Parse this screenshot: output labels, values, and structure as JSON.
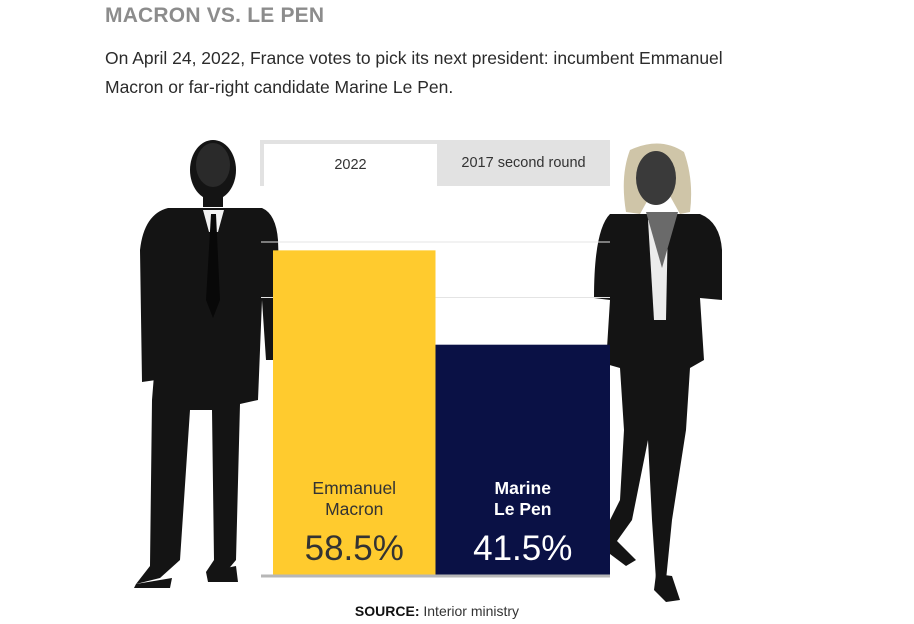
{
  "headline": "MACRON VS. LE PEN",
  "dek": "On April 24, 2022, France votes to pick its next president: incumbent Emmanuel Macron or far-right candidate Marine Le Pen.",
  "tabs": [
    {
      "label": "2022",
      "active": true
    },
    {
      "label": "2017 second round",
      "active": false
    }
  ],
  "chart_data": {
    "type": "bar",
    "categories": [
      "Emmanuel Macron",
      "Marine Le Pen"
    ],
    "category_lines": [
      [
        "Emmanuel",
        "Macron"
      ],
      [
        "Marine",
        "Le Pen"
      ]
    ],
    "values": [
      58.5,
      41.5
    ],
    "value_labels": [
      "58.5%",
      "41.5%"
    ],
    "colors": [
      "#FFCB2E",
      "#0A1145"
    ],
    "label_colors": [
      "#333333",
      "#ffffff"
    ],
    "ylim": [
      0,
      70
    ],
    "grid": true,
    "title": "",
    "xlabel": "",
    "ylabel": ""
  },
  "source": {
    "label": "SOURCE:",
    "text": " Interior ministry"
  },
  "colors": {
    "headline": "#8c8c8c",
    "gridline": "#e4e4e4",
    "baseline": "#b7b7b7"
  }
}
